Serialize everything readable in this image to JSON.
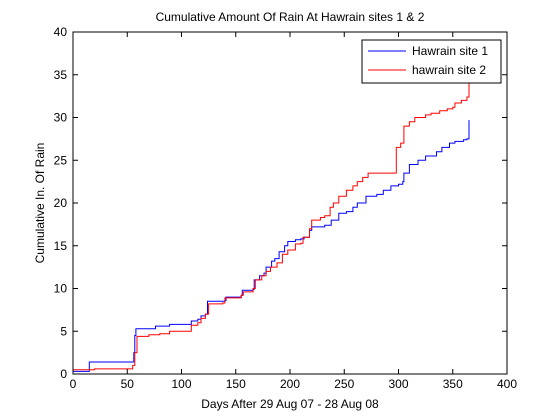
{
  "chart_data": {
    "type": "line",
    "title": "Cumulative Amount Of Rain At Hawrain sites 1 & 2",
    "xlabel": "Days After 29 Aug 07 - 28 Aug 08",
    "ylabel": "Cumulative In. Of Rain",
    "xlim": [
      0,
      400
    ],
    "ylim": [
      0,
      40
    ],
    "xticks": [
      0,
      50,
      100,
      150,
      200,
      250,
      300,
      350,
      400
    ],
    "yticks": [
      0,
      5,
      10,
      15,
      20,
      25,
      30,
      35,
      40
    ],
    "grid": false,
    "legend_position": "top-right",
    "series": [
      {
        "name": "Hawrain site 1",
        "color": "#0000ff",
        "points": [
          [
            0,
            0.3
          ],
          [
            15,
            0.3
          ],
          [
            15,
            1.4
          ],
          [
            55,
            1.4
          ],
          [
            56,
            2.5
          ],
          [
            57,
            4.5
          ],
          [
            58,
            5.3
          ],
          [
            75,
            5.3
          ],
          [
            76,
            5.6
          ],
          [
            88,
            5.6
          ],
          [
            89,
            5.8
          ],
          [
            108,
            5.8
          ],
          [
            109,
            6.2
          ],
          [
            115,
            6.4
          ],
          [
            118,
            6.8
          ],
          [
            122,
            7.0
          ],
          [
            124,
            8.5
          ],
          [
            140,
            8.6
          ],
          [
            141,
            9.0
          ],
          [
            155,
            9.2
          ],
          [
            156,
            9.8
          ],
          [
            166,
            9.9
          ],
          [
            167,
            11.0
          ],
          [
            172,
            11.5
          ],
          [
            176,
            11.8
          ],
          [
            178,
            12.5
          ],
          [
            183,
            13.2
          ],
          [
            186,
            13.5
          ],
          [
            190,
            14.3
          ],
          [
            195,
            15.0
          ],
          [
            198,
            15.5
          ],
          [
            205,
            15.7
          ],
          [
            210,
            15.8
          ],
          [
            213,
            16.0
          ],
          [
            218,
            16.8
          ],
          [
            220,
            17.2
          ],
          [
            232,
            17.4
          ],
          [
            238,
            18.0
          ],
          [
            245,
            18.8
          ],
          [
            252,
            19.0
          ],
          [
            258,
            19.5
          ],
          [
            262,
            20.0
          ],
          [
            270,
            20.8
          ],
          [
            280,
            21.0
          ],
          [
            286,
            21.5
          ],
          [
            293,
            22.0
          ],
          [
            300,
            22.2
          ],
          [
            304,
            22.5
          ],
          [
            305,
            23.5
          ],
          [
            310,
            24.5
          ],
          [
            318,
            25.0
          ],
          [
            325,
            25.5
          ],
          [
            335,
            26.0
          ],
          [
            340,
            26.5
          ],
          [
            347,
            27.0
          ],
          [
            352,
            27.2
          ],
          [
            360,
            27.4
          ],
          [
            363,
            27.5
          ],
          [
            365,
            29.7
          ]
        ]
      },
      {
        "name": "hawrain site 2",
        "color": "#ff0000",
        "points": [
          [
            0,
            0.5
          ],
          [
            20,
            0.5
          ],
          [
            20,
            0.6
          ],
          [
            54,
            0.6
          ],
          [
            55,
            1.0
          ],
          [
            57,
            2.5
          ],
          [
            59,
            4.4
          ],
          [
            70,
            4.6
          ],
          [
            80,
            4.7
          ],
          [
            88,
            4.7
          ],
          [
            89,
            5.0
          ],
          [
            108,
            5.0
          ],
          [
            109,
            5.7
          ],
          [
            115,
            6.0
          ],
          [
            118,
            6.5
          ],
          [
            122,
            7.0
          ],
          [
            125,
            8.2
          ],
          [
            138,
            8.3
          ],
          [
            140,
            8.9
          ],
          [
            155,
            9.2
          ],
          [
            157,
            9.6
          ],
          [
            166,
            10.0
          ],
          [
            168,
            11.0
          ],
          [
            174,
            11.5
          ],
          [
            178,
            12.0
          ],
          [
            182,
            12.5
          ],
          [
            188,
            13.0
          ],
          [
            193,
            14.0
          ],
          [
            198,
            14.5
          ],
          [
            205,
            15.2
          ],
          [
            210,
            15.3
          ],
          [
            212,
            16.0
          ],
          [
            218,
            17.0
          ],
          [
            220,
            18.0
          ],
          [
            228,
            18.3
          ],
          [
            232,
            18.5
          ],
          [
            237,
            19.5
          ],
          [
            240,
            20.0
          ],
          [
            245,
            20.8
          ],
          [
            252,
            21.5
          ],
          [
            258,
            22.0
          ],
          [
            262,
            22.5
          ],
          [
            267,
            23.0
          ],
          [
            272,
            23.5
          ],
          [
            295,
            23.5
          ],
          [
            298,
            26.5
          ],
          [
            302,
            27.0
          ],
          [
            305,
            29.0
          ],
          [
            310,
            29.5
          ],
          [
            315,
            30.0
          ],
          [
            325,
            30.3
          ],
          [
            330,
            30.5
          ],
          [
            338,
            30.8
          ],
          [
            345,
            31.0
          ],
          [
            350,
            31.2
          ],
          [
            352,
            31.7
          ],
          [
            358,
            32.0
          ],
          [
            363,
            32.4
          ],
          [
            365,
            34.5
          ]
        ]
      }
    ]
  }
}
